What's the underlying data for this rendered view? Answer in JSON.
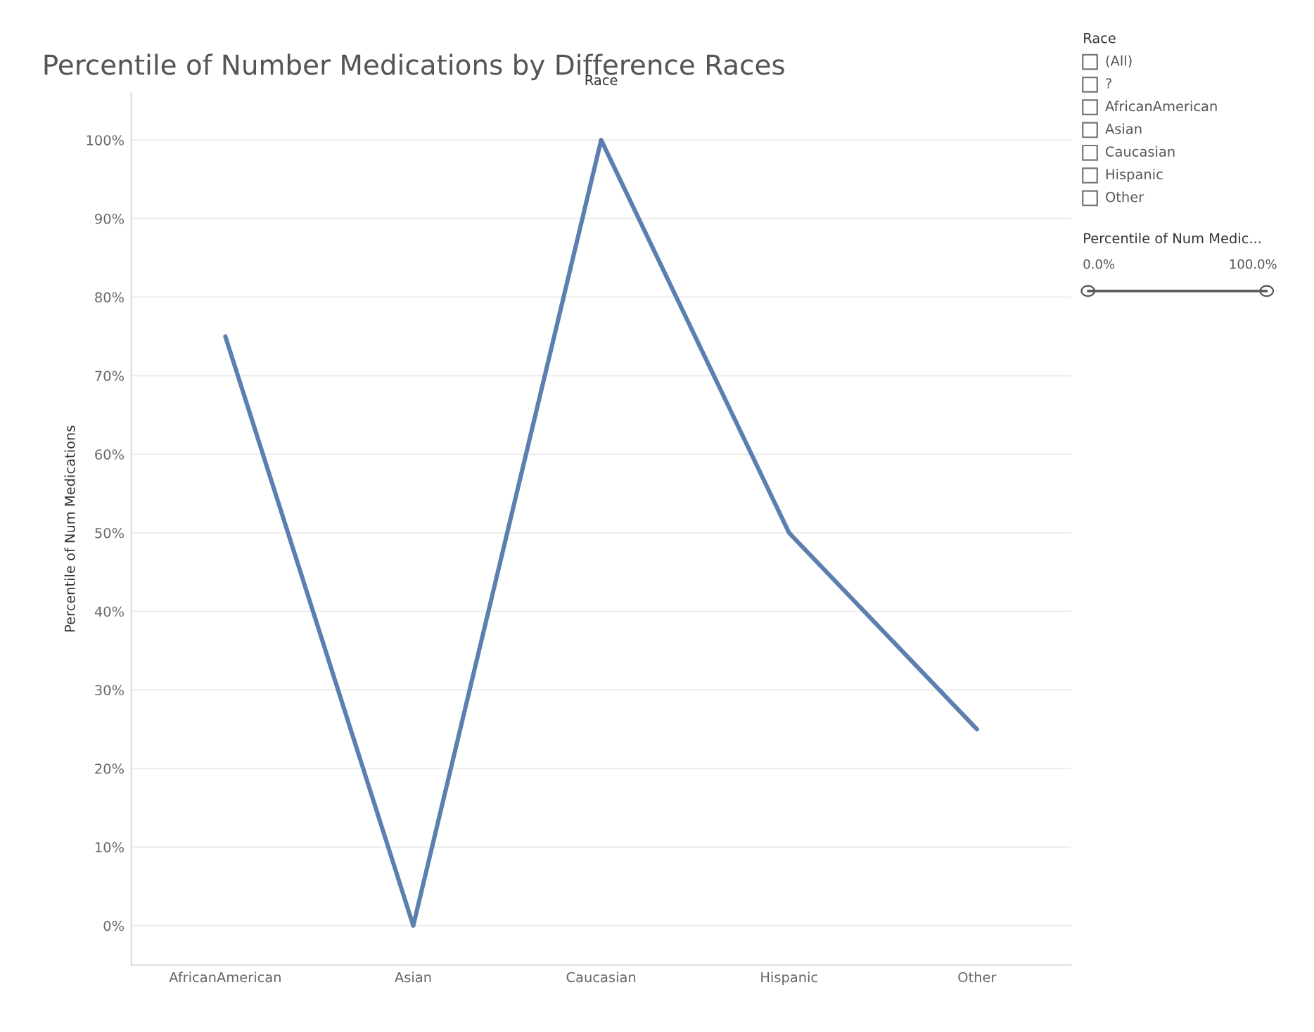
{
  "chart_data": {
    "type": "line",
    "title": "Percentile of Number Medications by Difference Races",
    "xlabel": "Race",
    "ylabel": "Percentile of Num Medications",
    "categories": [
      "AfricanAmerican",
      "Asian",
      "Caucasian",
      "Hispanic",
      "Other"
    ],
    "series": [
      {
        "color": "#5b7fae",
        "values": [
          75,
          0,
          100,
          50,
          25
        ]
      }
    ],
    "ylim": [
      -5,
      106
    ],
    "yticks": [
      {
        "value": 0,
        "label": "0%"
      },
      {
        "value": 10,
        "label": "10%"
      },
      {
        "value": 20,
        "label": "20%"
      },
      {
        "value": 30,
        "label": "30%"
      },
      {
        "value": 40,
        "label": "40%"
      },
      {
        "value": 50,
        "label": "50%"
      },
      {
        "value": 60,
        "label": "60%"
      },
      {
        "value": 70,
        "label": "70%"
      },
      {
        "value": 80,
        "label": "80%"
      },
      {
        "value": 90,
        "label": "90%"
      },
      {
        "value": 100,
        "label": "100%"
      }
    ],
    "grid": "y",
    "marker": "none",
    "line_style": "solid",
    "annotations": [
      "Race",
      "(All)",
      "?",
      "AfricanAmerican",
      "Asian",
      "Caucasian",
      "Hispanic",
      "Other",
      "Percentile of Num Medic...",
      "0.0%",
      "100.0%"
    ]
  }
}
